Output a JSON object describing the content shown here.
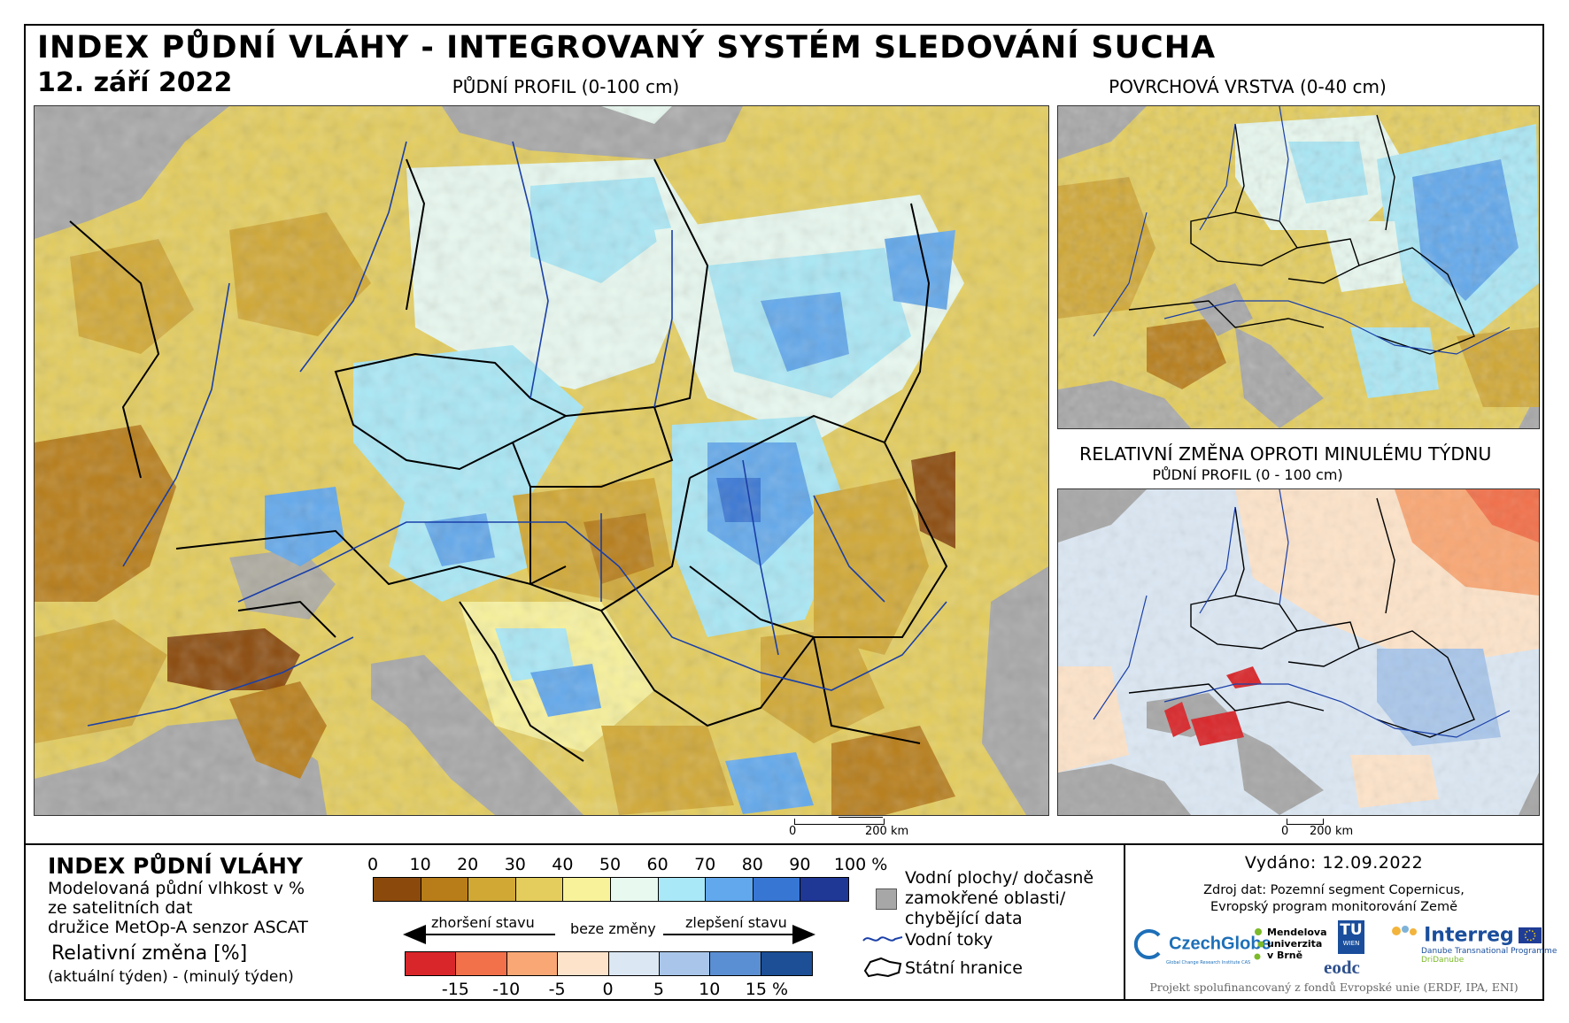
{
  "title": "INDEX PŮDNÍ VLÁHY - INTEGROVANÝ SYSTÉM SLEDOVÁNÍ SUCHA",
  "date": "12. září 2022",
  "panels": {
    "main": {
      "title": "PŮDNÍ PROFIL (0-100 cm)",
      "scale_start": "0",
      "scale_end": "200 km"
    },
    "surface": {
      "title": "POVRCHOVÁ VRSTVA (0-40 cm)"
    },
    "change": {
      "title": "RELATIVNÍ ZMĚNA OPROTI MINULÉMU TÝDNU",
      "subtitle": "PŮDNÍ PROFIL (0 - 100 cm)",
      "scale_start": "0",
      "scale_end": "200 km"
    }
  },
  "legend": {
    "title": "INDEX PŮDNÍ VLÁHY",
    "line1": "Modelovaná půdní vlhkost v %",
    "line2": "ze satelitních dat",
    "line3": "družice MetOp-A senzor ASCAT",
    "rel_title": "Relativní změna [%]",
    "rel_sub": "(aktuální týden) - (minulý týden)",
    "moisture_ticks": [
      "0",
      "10",
      "20",
      "30",
      "40",
      "50",
      "60",
      "70",
      "80",
      "90",
      "100 %"
    ],
    "moisture_colors": [
      "#8b4a0c",
      "#b87d18",
      "#d1a834",
      "#e4cd5c",
      "#f8f29b",
      "#e8f9f0",
      "#a9e8f6",
      "#61a8ec",
      "#3876d4",
      "#1f3795"
    ],
    "change_ticks": [
      "-15",
      "-10",
      "-5",
      "0",
      "5",
      "10",
      "15 %"
    ],
    "change_colors": [
      "#d9262a",
      "#f2704a",
      "#f9a774",
      "#fde3c9",
      "#dbe7f3",
      "#a9c6ea",
      "#5b8fd3",
      "#1c4f96"
    ],
    "arrow_worse": "zhoršení stavu",
    "arrow_none": "beze změny",
    "arrow_better": "zlepšení stavu",
    "water_bodies": "Vodní plochy/ dočasně",
    "water_bodies_2": "zamokřené oblasti/",
    "water_bodies_3": "chybějící data",
    "rivers": "Vodní toky",
    "borders": "Státní hranice"
  },
  "issued": "Vydáno: 12.09.2022",
  "source_line1": "Zdroj dat: Pozemní segment Copernicus,",
  "source_line2": "Evropský program monitorování Země",
  "logos": {
    "czechglobe": "CzechGlobe",
    "czechglobe_sub": "Global Change Research Institute CAS",
    "mendel_1": "Mendelova",
    "mendel_2": "univerzita",
    "mendel_3": "v Brně",
    "tu": "TU",
    "tu_sub": "WIEN",
    "eodc": "eodc",
    "interreg": "Interreg",
    "interreg_sub1": "Danube Transnational Programme",
    "interreg_sub2": "DriDanube"
  },
  "funding": "Projekt spolufinancovaný z fondů Evropské unie (ERDF, IPA, ENI)",
  "colors": {
    "sea": "#a7a7a7",
    "border": "#000000",
    "river": "#1a3fa8"
  }
}
